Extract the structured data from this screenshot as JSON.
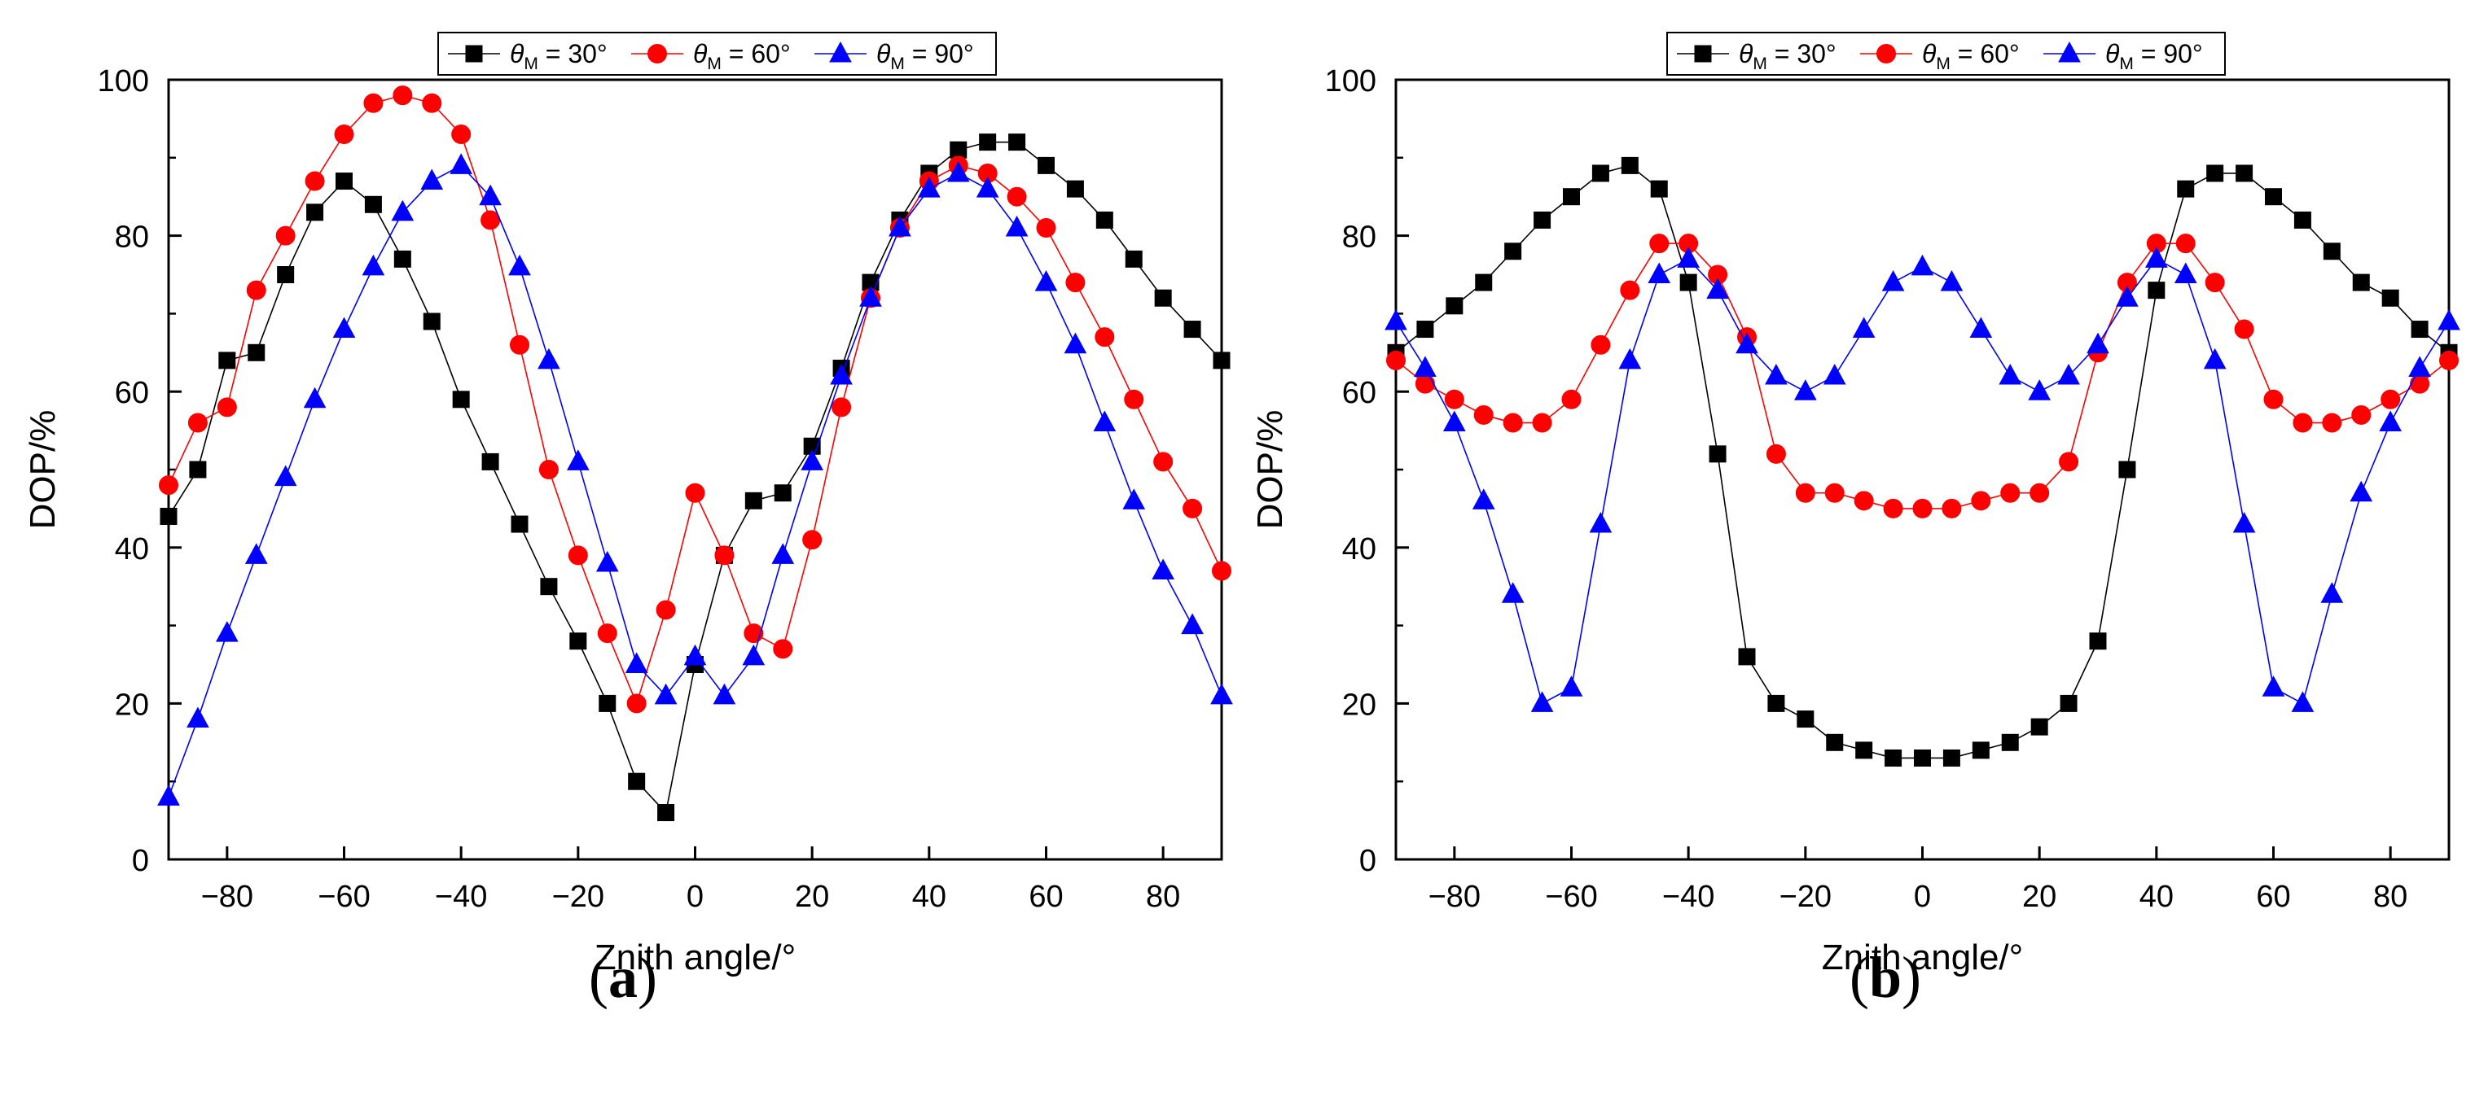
{
  "figure": {
    "panels": [
      "(a)",
      "(b)"
    ]
  },
  "legend": {
    "symbol": "θ",
    "subscript": "M",
    "entries": [
      " = 30°",
      " = 60°",
      " = 90°"
    ]
  },
  "styles": {
    "series_colors": [
      "#000000",
      "#ff0000",
      "#0000ff"
    ],
    "marker_fills": [
      "#000000",
      "#ff0000",
      "#0000ff"
    ],
    "marker_shapes": [
      "square",
      "circle",
      "triangle"
    ]
  },
  "chart_data": [
    {
      "type": "line",
      "panel": "(a)",
      "xlabel": "Znith angle/°",
      "ylabel": "DOP/%",
      "xlim": [
        -90,
        90
      ],
      "ylim": [
        0,
        100
      ],
      "xticks": [
        -80,
        -60,
        -40,
        -20,
        0,
        20,
        40,
        60,
        80
      ],
      "yticks": [
        0,
        20,
        40,
        60,
        80,
        100
      ],
      "x": [
        -90,
        -85,
        -80,
        -75,
        -70,
        -65,
        -60,
        -55,
        -50,
        -45,
        -40,
        -35,
        -30,
        -25,
        -20,
        -15,
        -10,
        -5,
        0,
        5,
        10,
        15,
        20,
        25,
        30,
        35,
        40,
        45,
        50,
        55,
        60,
        65,
        70,
        75,
        80,
        85,
        90
      ],
      "series": [
        {
          "name": "θM = 30°",
          "values": [
            44,
            50,
            64,
            65,
            75,
            83,
            87,
            84,
            77,
            69,
            59,
            51,
            43,
            35,
            28,
            20,
            10,
            6,
            25,
            39,
            46,
            47,
            53,
            63,
            74,
            82,
            88,
            91,
            92,
            92,
            89,
            86,
            82,
            77,
            72,
            68,
            64
          ]
        },
        {
          "name": "θM = 60°",
          "values": [
            48,
            56,
            58,
            73,
            80,
            87,
            93,
            97,
            98,
            97,
            93,
            82,
            66,
            50,
            39,
            29,
            20,
            32,
            47,
            39,
            29,
            27,
            41,
            58,
            72,
            81,
            87,
            89,
            88,
            85,
            81,
            74,
            67,
            59,
            51,
            45,
            37
          ]
        },
        {
          "name": "θM = 90°",
          "values": [
            8,
            18,
            29,
            39,
            49,
            59,
            68,
            76,
            83,
            87,
            89,
            85,
            76,
            64,
            51,
            38,
            25,
            21,
            26,
            21,
            26,
            39,
            51,
            62,
            72,
            81,
            86,
            88,
            86,
            81,
            74,
            66,
            56,
            46,
            37,
            30,
            21
          ]
        }
      ]
    },
    {
      "type": "line",
      "panel": "(b)",
      "xlabel": "Znith angle/°",
      "ylabel": "DOP/%",
      "xlim": [
        -90,
        90
      ],
      "ylim": [
        0,
        100
      ],
      "xticks": [
        -80,
        -60,
        -40,
        -20,
        0,
        20,
        40,
        60,
        80
      ],
      "yticks": [
        0,
        20,
        40,
        60,
        80,
        100
      ],
      "x": [
        -90,
        -85,
        -80,
        -75,
        -70,
        -65,
        -60,
        -55,
        -50,
        -45,
        -40,
        -35,
        -30,
        -25,
        -20,
        -15,
        -10,
        -5,
        0,
        5,
        10,
        15,
        20,
        25,
        30,
        35,
        40,
        45,
        50,
        55,
        60,
        65,
        70,
        75,
        80,
        85,
        90
      ],
      "series": [
        {
          "name": "θM = 30°",
          "values": [
            65,
            68,
            71,
            74,
            78,
            82,
            85,
            88,
            89,
            86,
            74,
            52,
            26,
            20,
            18,
            15,
            14,
            13,
            13,
            13,
            14,
            15,
            17,
            20,
            28,
            50,
            73,
            86,
            88,
            88,
            85,
            82,
            78,
            74,
            72,
            68,
            65
          ]
        },
        {
          "name": "θM = 60°",
          "values": [
            64,
            61,
            59,
            57,
            56,
            56,
            59,
            66,
            73,
            79,
            79,
            75,
            67,
            52,
            47,
            47,
            46,
            45,
            45,
            45,
            46,
            47,
            47,
            51,
            65,
            74,
            79,
            79,
            74,
            68,
            59,
            56,
            56,
            57,
            59,
            61,
            64
          ]
        },
        {
          "name": "θM = 90°",
          "values": [
            69,
            63,
            56,
            46,
            34,
            20,
            22,
            43,
            64,
            75,
            77,
            73,
            66,
            62,
            60,
            62,
            68,
            74,
            76,
            74,
            68,
            62,
            60,
            62,
            66,
            72,
            77,
            75,
            64,
            43,
            22,
            20,
            34,
            47,
            56,
            63,
            69
          ]
        }
      ]
    }
  ]
}
